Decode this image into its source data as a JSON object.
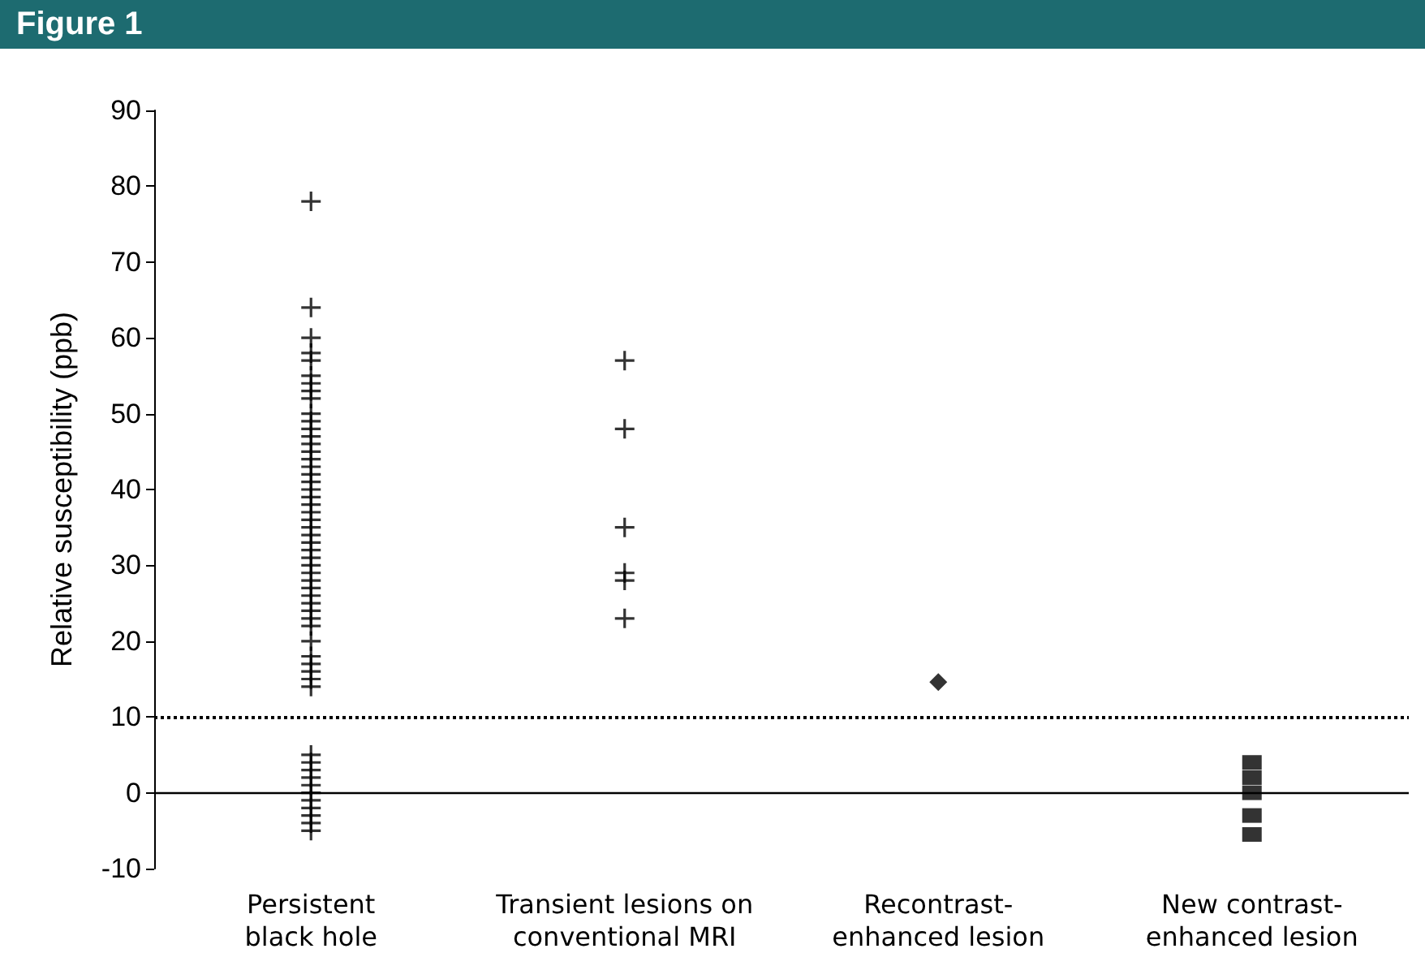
{
  "chart_data": {
    "type": "scatter",
    "title": "Figure 1",
    "ylabel": "Relative susceptibility (ppb)",
    "categories": [
      "Persistent\nblack hole",
      "Transient lesions on\nconventional MRI",
      "Recontrast-\nenhanced lesion",
      "New contrast-\nenhanced lesion"
    ],
    "series": [
      {
        "color": "#000000",
        "marker": "cross",
        "x": [
          "Persistent\nblack hole",
          "Persistent\nblack hole",
          "Persistent\nblack hole",
          "Persistent\nblack hole",
          "Persistent\nblack hole",
          "Persistent\nblack hole",
          "Persistent\nblack hole",
          "Persistent\nblack hole",
          "Persistent\nblack hole",
          "Persistent\nblack hole",
          "Persistent\nblack hole",
          "Persistent\nblack hole",
          "Persistent\nblack hole",
          "Persistent\nblack hole",
          "Persistent\nblack hole",
          "Persistent\nblack hole",
          "Persistent\nblack hole",
          "Persistent\nblack hole",
          "Persistent\nblack hole",
          "Persistent\nblack hole",
          "Persistent\nblack hole",
          "Persistent\nblack hole",
          "Persistent\nblack hole",
          "Persistent\nblack hole",
          "Persistent\nblack hole",
          "Persistent\nblack hole",
          "Persistent\nblack hole",
          "Persistent\nblack hole",
          "Persistent\nblack hole",
          "Persistent\nblack hole",
          "Persistent\nblack hole",
          "Persistent\nblack hole",
          "Persistent\nblack hole",
          "Persistent\nblack hole",
          "Persistent\nblack hole",
          "Persistent\nblack hole",
          "Persistent\nblack hole",
          "Persistent\nblack hole",
          "Persistent\nblack hole",
          "Persistent\nblack hole",
          "Persistent\nblack hole",
          "Persistent\nblack hole",
          "Persistent\nblack hole",
          "Persistent\nblack hole",
          "Persistent\nblack hole",
          "Persistent\nblack hole",
          "Persistent\nblack hole",
          "Persistent\nblack hole",
          "Persistent\nblack hole",
          "Persistent\nblack hole",
          "Persistent\nblack hole",
          "Persistent\nblack hole",
          "Persistent\nblack hole",
          "Persistent\nblack hole",
          "Persistent\nblack hole"
        ],
        "values": [
          78,
          64,
          60,
          58,
          57,
          55,
          54,
          53,
          52,
          50,
          49,
          48,
          47,
          46,
          45,
          44,
          43,
          42,
          41,
          40,
          39,
          38,
          37,
          36,
          35,
          34,
          33,
          32,
          31,
          30,
          29,
          28,
          27,
          26,
          25,
          24,
          23,
          22,
          20,
          18,
          17,
          16,
          15,
          14,
          5,
          4,
          3,
          2,
          1,
          0,
          -1,
          -2,
          -3,
          -4,
          -5
        ]
      },
      {
        "color": "#000000",
        "marker": "cross",
        "x": [
          "Transient lesions on\nconventional MRI",
          "Transient lesions on\nconventional MRI",
          "Transient lesions on\nconventional MRI",
          "Transient lesions on\nconventional MRI",
          "Transient lesions on\nconventional MRI",
          "Transient lesions on\nconventional MRI"
        ],
        "values": [
          57,
          48,
          35,
          29,
          28,
          23
        ]
      },
      {
        "color": "#000000",
        "marker": "diamond",
        "x": [
          "Recontrast-\nenhanced lesion"
        ],
        "values": [
          14.6
        ]
      },
      {
        "color": "#000000",
        "marker": "square",
        "x": [
          "New contrast-\nenhanced lesion",
          "New contrast-\nenhanced lesion",
          "New contrast-\nenhanced lesion",
          "New contrast-\nenhanced lesion",
          "New contrast-\nenhanced lesion"
        ],
        "values": [
          4,
          2,
          0,
          -3,
          -5.5
        ]
      }
    ],
    "ylim": [
      -10,
      90
    ],
    "yticks": [
      -10,
      0,
      10,
      20,
      30,
      40,
      50,
      60,
      70,
      80,
      90
    ],
    "ref_lines": [
      {
        "axis": "y",
        "value": 10,
        "line_style": "dotted",
        "color": "#000000"
      },
      {
        "axis": "y",
        "value": 0,
        "line_style": "solid",
        "color": "#000000"
      }
    ],
    "grid": false
  }
}
